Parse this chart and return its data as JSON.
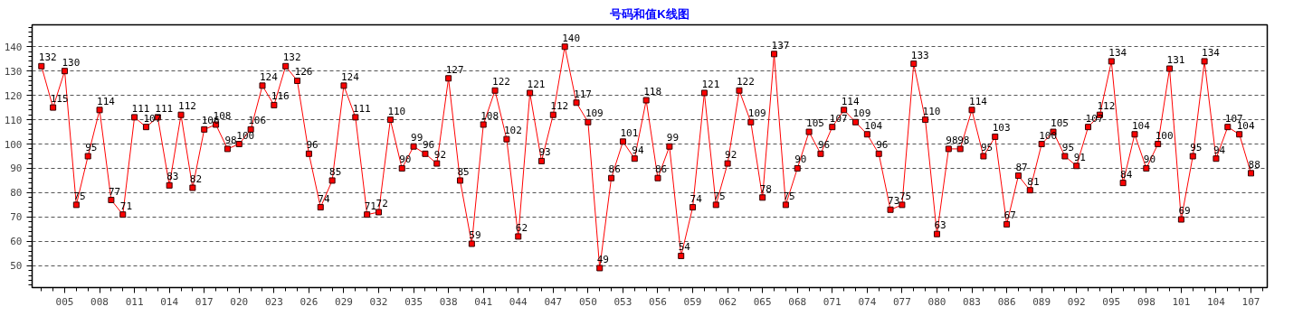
{
  "chart_data": {
    "type": "line",
    "title": "号码和值K线图",
    "x": [
      3,
      4,
      5,
      6,
      7,
      8,
      9,
      10,
      11,
      12,
      13,
      14,
      15,
      16,
      17,
      18,
      19,
      20,
      21,
      22,
      23,
      24,
      25,
      26,
      27,
      28,
      29,
      30,
      31,
      32,
      33,
      34,
      35,
      36,
      37,
      38,
      39,
      40,
      41,
      42,
      43,
      44,
      45,
      46,
      47,
      48,
      49,
      50,
      51,
      52,
      53,
      54,
      55,
      56,
      57,
      58,
      59,
      60,
      61,
      62,
      63,
      64,
      65,
      66,
      67,
      68,
      69,
      70,
      71,
      72,
      73,
      74,
      75,
      76,
      77,
      78,
      79,
      80,
      81,
      82,
      83,
      84,
      85,
      86,
      87,
      88,
      89,
      90,
      91,
      92,
      93,
      94,
      95,
      96,
      97,
      98,
      99,
      100,
      101,
      102,
      103,
      104,
      105,
      106,
      107
    ],
    "series": [
      {
        "color": "#ff0000",
        "values": [
          132,
          115,
          130,
          75,
          95,
          114,
          77,
          71,
          111,
          107,
          111,
          83,
          112,
          82,
          106,
          108,
          98,
          100,
          106,
          124,
          116,
          132,
          126,
          96,
          74,
          85,
          124,
          111,
          71,
          72,
          110,
          90,
          99,
          96,
          92,
          127,
          85,
          59,
          108,
          122,
          102,
          62,
          121,
          93,
          112,
          140,
          117,
          109,
          49,
          86,
          101,
          94,
          118,
          86,
          99,
          54,
          74,
          121,
          75,
          92,
          122,
          109,
          78,
          137,
          75,
          90,
          105,
          96,
          107,
          114,
          109,
          104,
          96,
          73,
          75,
          133,
          110,
          63,
          98,
          98,
          114,
          95,
          103,
          67,
          87,
          81,
          100,
          105,
          95,
          91,
          107,
          112,
          134,
          84,
          104,
          90,
          100,
          131,
          69,
          95,
          134,
          94,
          107,
          104,
          88
        ]
      }
    ],
    "xlim": [
      2.2,
      108.4
    ],
    "ylim": [
      41,
      149
    ],
    "xticks": [
      {
        "value": 5,
        "label": "005"
      },
      {
        "value": 8,
        "label": "008"
      },
      {
        "value": 11,
        "label": "011"
      },
      {
        "value": 14,
        "label": "014"
      },
      {
        "value": 17,
        "label": "017"
      },
      {
        "value": 20,
        "label": "020"
      },
      {
        "value": 23,
        "label": "023"
      },
      {
        "value": 26,
        "label": "026"
      },
      {
        "value": 29,
        "label": "029"
      },
      {
        "value": 32,
        "label": "032"
      },
      {
        "value": 35,
        "label": "035"
      },
      {
        "value": 38,
        "label": "038"
      },
      {
        "value": 41,
        "label": "041"
      },
      {
        "value": 44,
        "label": "044"
      },
      {
        "value": 47,
        "label": "047"
      },
      {
        "value": 50,
        "label": "050"
      },
      {
        "value": 53,
        "label": "053"
      },
      {
        "value": 56,
        "label": "056"
      },
      {
        "value": 59,
        "label": "059"
      },
      {
        "value": 62,
        "label": "062"
      },
      {
        "value": 65,
        "label": "065"
      },
      {
        "value": 68,
        "label": "068"
      },
      {
        "value": 71,
        "label": "071"
      },
      {
        "value": 74,
        "label": "074"
      },
      {
        "value": 77,
        "label": "077"
      },
      {
        "value": 80,
        "label": "080"
      },
      {
        "value": 83,
        "label": "083"
      },
      {
        "value": 86,
        "label": "086"
      },
      {
        "value": 89,
        "label": "089"
      },
      {
        "value": 92,
        "label": "092"
      },
      {
        "value": 95,
        "label": "095"
      },
      {
        "value": 98,
        "label": "098"
      },
      {
        "value": 101,
        "label": "101"
      },
      {
        "value": 104,
        "label": "104"
      },
      {
        "value": 107,
        "label": "107"
      }
    ],
    "yticks": [
      50,
      60,
      70,
      80,
      90,
      100,
      110,
      120,
      130,
      140
    ],
    "grid": "y",
    "marker": "square",
    "line_style": "solid",
    "data_labels": true
  }
}
